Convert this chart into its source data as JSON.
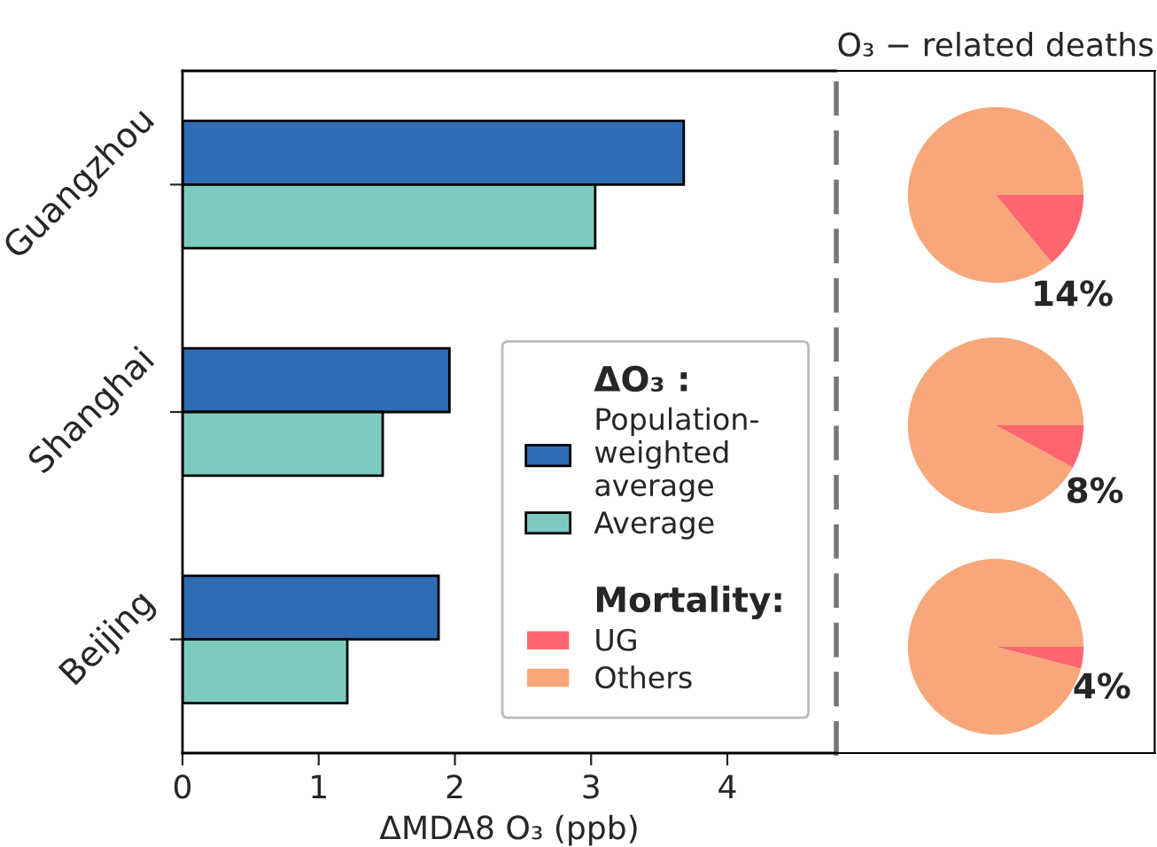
{
  "chart_data": [
    {
      "type": "bar",
      "orientation": "horizontal",
      "categories": [
        "Guangzhou",
        "Shanghai",
        "Beijing"
      ],
      "series": [
        {
          "name": "Population-\nweighted\naverage",
          "color": "#2e6db4",
          "values": [
            3.68,
            1.96,
            1.88
          ]
        },
        {
          "name": "Average",
          "color": "#7ccbc0",
          "values": [
            3.03,
            1.47,
            1.21
          ]
        }
      ],
      "xlabel": "ΔMDA8 O₃ (ppb)",
      "xlim": [
        0,
        4.8
      ],
      "xticks": [
        0,
        1,
        2,
        3,
        4
      ],
      "legend_title": "ΔO₃ :",
      "legend": "bottom right",
      "grid": false
    },
    {
      "type": "pie",
      "title": "O₃ − related deaths",
      "legend_title": "Mortality:",
      "legend": "bottom left",
      "categories": [
        "UG",
        "Others"
      ],
      "values": [
        14,
        86
      ],
      "colors": [
        "#ff6670",
        "#f7a77a"
      ],
      "value_labels": [
        "14%",
        null
      ]
    },
    {
      "type": "pie",
      "categories": [
        null,
        null
      ],
      "values": [
        8,
        92
      ],
      "colors": [
        "#ff6670",
        "#f7a77a"
      ],
      "value_labels": [
        "8%",
        null
      ]
    },
    {
      "type": "pie",
      "categories": [
        null,
        null
      ],
      "values": [
        4,
        96
      ],
      "colors": [
        "#ff6670",
        "#f7a77a"
      ],
      "value_labels": [
        "4%",
        null
      ]
    }
  ]
}
